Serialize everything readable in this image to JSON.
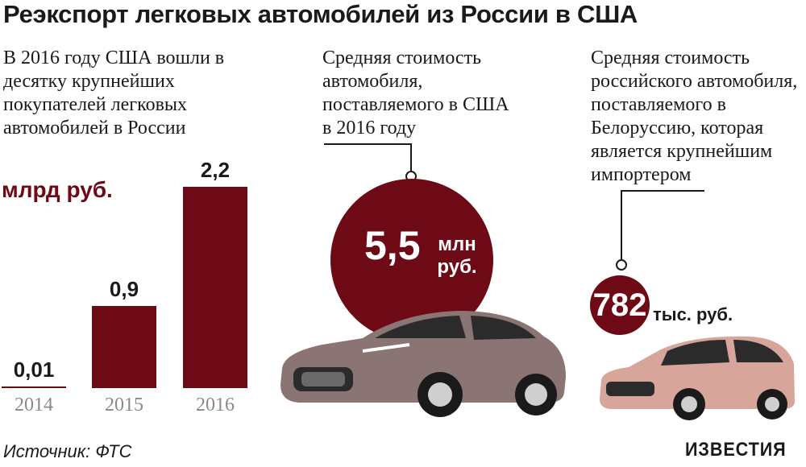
{
  "title": "Реэкспорт легковых автомобилей из России в США",
  "intro_text": "В 2016 году США вошли в десятку крупнейших покупателей легковых автомобилей в России",
  "colors": {
    "accent": "#6e0a15",
    "car_usa": "#8a7474",
    "car_belarus": "#d8a59a"
  },
  "chart_data": {
    "type": "bar",
    "title": "",
    "unit": "млрд руб.",
    "categories": [
      "2014",
      "2015",
      "2016"
    ],
    "values": [
      0.01,
      0.9,
      2.2
    ],
    "value_labels": [
      "0,01",
      "0,9",
      "2,2"
    ],
    "ylim": [
      0,
      2.2
    ],
    "grid": false,
    "legend": "none"
  },
  "usa_note": {
    "text": "Средняя стоимость автомобиля, поставляемого в США в 2016 году",
    "value": "5,5",
    "unit": "млн руб."
  },
  "belarus_note": {
    "text": "Средняя стоимость российского автомобиля, поставляемого в Белоруссию, которая является крупнейшим импортером",
    "value": "782",
    "unit": "тыс. руб."
  },
  "source": "Источник: ФТС",
  "logo": "ИЗВЕСТИЯ"
}
